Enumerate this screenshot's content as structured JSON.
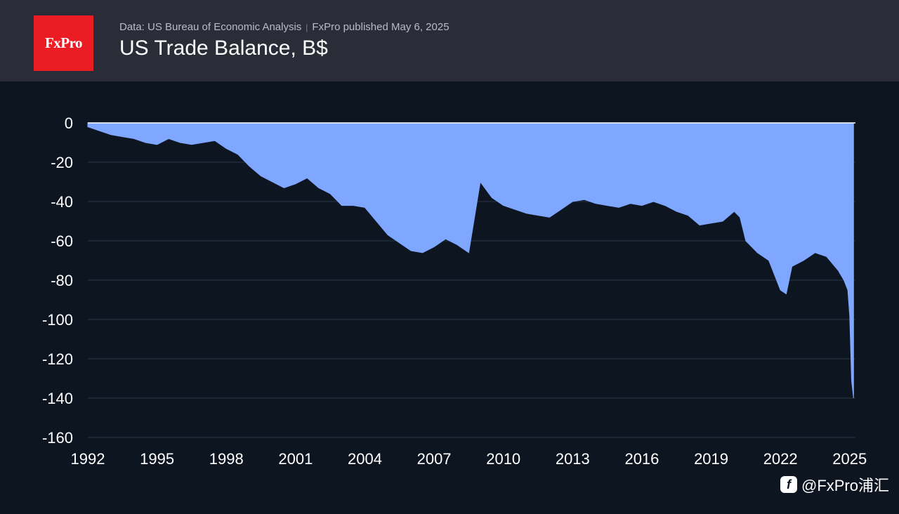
{
  "header": {
    "logo_text": "FxPro",
    "source": "Data: US Bureau of Economic Analysis",
    "separator": "|",
    "published": "FxPro published May 6, 2025",
    "title": "US Trade Balance, B$"
  },
  "watermark": {
    "icon": "weibo-icon",
    "text": "@FxPro浦汇"
  },
  "colors": {
    "background": "#0d1521",
    "header": "#2a2c37",
    "area": "#7fa7ff",
    "gridline": "#2a3547",
    "logo": "#ec1c24"
  },
  "chart_data": {
    "type": "area",
    "title": "US Trade Balance, B$",
    "xlabel": "",
    "ylabel": "",
    "xlim": [
      1992,
      2025.25
    ],
    "ylim": [
      -160,
      0
    ],
    "yticks": [
      0,
      -20,
      -40,
      -60,
      -80,
      -100,
      -120,
      -140,
      -160
    ],
    "xticks": [
      1992,
      1995,
      1998,
      2001,
      2004,
      2007,
      2010,
      2013,
      2016,
      2019,
      2022,
      2025
    ],
    "grid": "horizontal",
    "fill": "between zero line and series (negative values)",
    "series": [
      {
        "x": [
          1992,
          1992.5,
          1993,
          1993.5,
          1994,
          1994.5,
          1995,
          1995.5,
          1996,
          1996.5,
          1997,
          1997.5,
          1998,
          1998.5,
          1999,
          1999.5,
          2000,
          2000.5,
          2001,
          2001.5,
          2002,
          2002.5,
          2003,
          2003.5,
          2004,
          2004.5,
          2005,
          2005.5,
          2006,
          2006.5,
          2007,
          2007.5,
          2008,
          2008.5,
          2009,
          2009.5,
          2010,
          2010.5,
          2011,
          2011.5,
          2012,
          2012.5,
          2013,
          2013.5,
          2014,
          2014.5,
          2015,
          2015.5,
          2016,
          2016.5,
          2017,
          2017.5,
          2018,
          2018.5,
          2019,
          2019.5,
          2020,
          2020.25,
          2020.5,
          2021,
          2021.5,
          2022,
          2022.25,
          2022.5,
          2023,
          2023.5,
          2024,
          2024.5,
          2024.75,
          2024.917,
          2025,
          2025.083,
          2025.167
        ],
        "y": [
          -2,
          -4,
          -6,
          -7,
          -8,
          -10,
          -11,
          -8,
          -10,
          -11,
          -10,
          -9,
          -13,
          -16,
          -22,
          -27,
          -30,
          -33,
          -31,
          -28,
          -33,
          -36,
          -42,
          -42,
          -43,
          -50,
          -57,
          -61,
          -65,
          -66,
          -63,
          -59,
          -62,
          -66,
          -30,
          -38,
          -42,
          -44,
          -46,
          -47,
          -48,
          -44,
          -40,
          -39,
          -41,
          -42,
          -43,
          -41,
          -42,
          -40,
          -42,
          -45,
          -47,
          -52,
          -51,
          -50,
          -45,
          -48,
          -60,
          -66,
          -70,
          -85,
          -87,
          -73,
          -70,
          -66,
          -68,
          -75,
          -80,
          -85,
          -98,
          -131,
          -140
        ]
      }
    ]
  }
}
